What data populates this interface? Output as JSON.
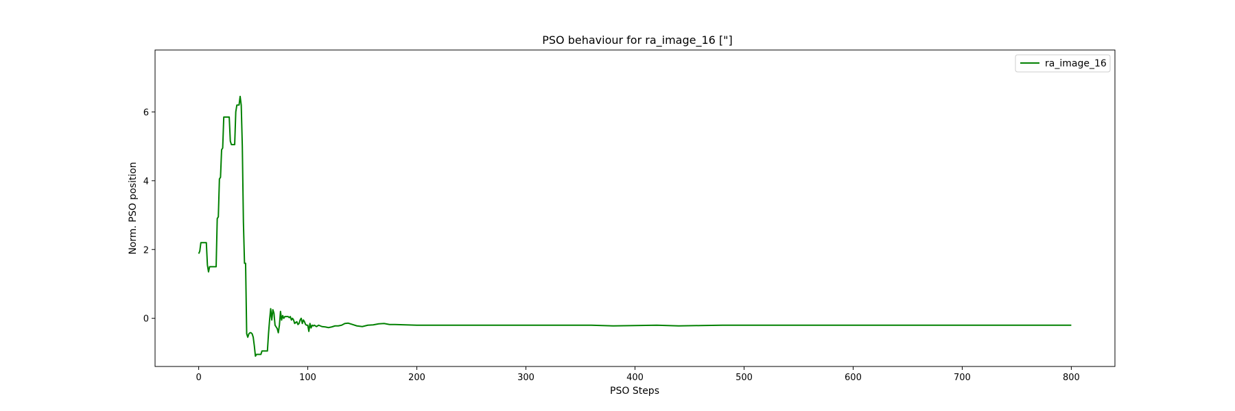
{
  "chart_data": {
    "type": "line",
    "title": "PSO behaviour for ra_image_16 [\"]",
    "xlabel": "PSO Steps",
    "ylabel": "Norm. PSO position",
    "xlim": [
      -40,
      840
    ],
    "ylim": [
      -1.4,
      7.8
    ],
    "xticks": [
      0,
      100,
      200,
      300,
      400,
      500,
      600,
      700,
      800
    ],
    "yticks": [
      0,
      2,
      4,
      6
    ],
    "grid": false,
    "legend": "top-right",
    "series": [
      {
        "name": "ra_image_16",
        "color": "#008000",
        "x": [
          0,
          1,
          2,
          3,
          4,
          5,
          6,
          7,
          8,
          9,
          10,
          11,
          12,
          13,
          14,
          15,
          16,
          17,
          18,
          19,
          20,
          21,
          22,
          23,
          24,
          25,
          26,
          27,
          28,
          29,
          30,
          31,
          32,
          33,
          34,
          35,
          36,
          37,
          38,
          39,
          40,
          41,
          42,
          43,
          44,
          45,
          46,
          47,
          48,
          49,
          50,
          51,
          52,
          53,
          54,
          55,
          56,
          57,
          58,
          59,
          60,
          61,
          62,
          63,
          64,
          65,
          66,
          67,
          68,
          69,
          70,
          71,
          72,
          73,
          74,
          75,
          76,
          77,
          78,
          79,
          80,
          81,
          82,
          83,
          84,
          85,
          86,
          87,
          88,
          89,
          90,
          91,
          92,
          93,
          94,
          95,
          96,
          97,
          98,
          99,
          100,
          101,
          102,
          103,
          104,
          105,
          106,
          107,
          108,
          110,
          113,
          116,
          119,
          122,
          125,
          128,
          131,
          134,
          137,
          140,
          145,
          150,
          155,
          160,
          165,
          170,
          175,
          180,
          190,
          200,
          210,
          220,
          230,
          240,
          250,
          260,
          280,
          300,
          320,
          340,
          360,
          380,
          400,
          420,
          440,
          460,
          480,
          500,
          550,
          600,
          650,
          700,
          750,
          800
        ],
        "y": [
          1.88,
          1.95,
          2.2,
          2.2,
          2.2,
          2.2,
          2.2,
          2.2,
          1.55,
          1.35,
          1.5,
          1.5,
          1.5,
          1.5,
          1.5,
          1.5,
          1.5,
          2.9,
          2.95,
          4.05,
          4.1,
          4.9,
          4.95,
          5.85,
          5.85,
          5.85,
          5.85,
          5.85,
          5.85,
          5.15,
          5.05,
          5.05,
          5.05,
          5.05,
          6.0,
          6.2,
          6.2,
          6.2,
          6.45,
          6.2,
          5.0,
          2.8,
          1.6,
          1.6,
          -0.45,
          -0.55,
          -0.45,
          -0.42,
          -0.42,
          -0.45,
          -0.55,
          -0.8,
          -1.1,
          -1.05,
          -1.05,
          -1.05,
          -1.05,
          -1.05,
          -0.95,
          -0.95,
          -0.95,
          -0.95,
          -0.95,
          -0.95,
          -0.45,
          -0.05,
          0.28,
          -0.05,
          0.25,
          0.15,
          -0.2,
          -0.25,
          -0.3,
          -0.42,
          -0.2,
          0.2,
          -0.05,
          0.08,
          0.0,
          0.05,
          0.05,
          0.05,
          0.05,
          0.02,
          0.05,
          -0.05,
          0.0,
          -0.05,
          -0.15,
          -0.12,
          -0.1,
          -0.18,
          -0.15,
          -0.05,
          0.0,
          -0.15,
          -0.05,
          -0.1,
          -0.18,
          -0.2,
          -0.2,
          -0.38,
          -0.15,
          -0.28,
          -0.2,
          -0.22,
          -0.2,
          -0.22,
          -0.24,
          -0.2,
          -0.24,
          -0.25,
          -0.27,
          -0.25,
          -0.22,
          -0.22,
          -0.2,
          -0.15,
          -0.14,
          -0.17,
          -0.22,
          -0.24,
          -0.2,
          -0.19,
          -0.16,
          -0.15,
          -0.18,
          -0.18,
          -0.19,
          -0.2,
          -0.2,
          -0.2,
          -0.2,
          -0.2,
          -0.2,
          -0.2,
          -0.2,
          -0.2,
          -0.2,
          -0.2,
          -0.2,
          -0.22,
          -0.21,
          -0.2,
          -0.22,
          -0.21,
          -0.2,
          -0.2,
          -0.2,
          -0.2,
          -0.2,
          -0.2,
          -0.2,
          -0.2
        ]
      }
    ]
  }
}
